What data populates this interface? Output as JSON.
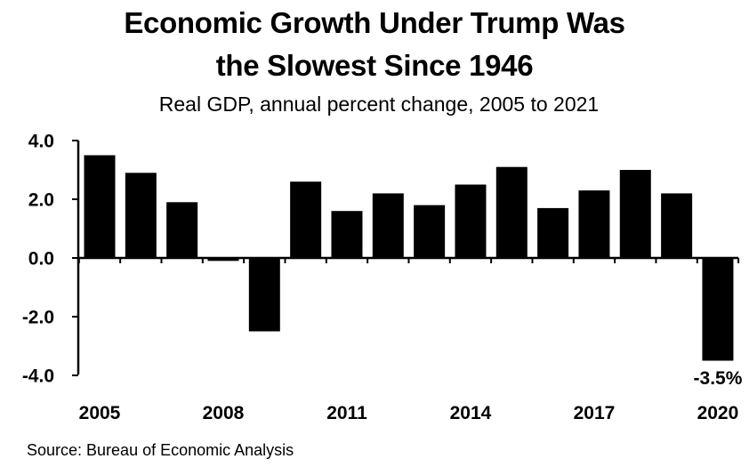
{
  "title_line1": "Economic Growth Under Trump Was",
  "title_line2": "the Slowest Since 1946",
  "subtitle": "Real GDP, annual percent change, 2005 to 2021",
  "source": "Source: Bureau of Economic Analysis",
  "colors": {
    "bar": "#000000",
    "axis": "#000000",
    "background": "#ffffff"
  },
  "chart_data": {
    "type": "bar",
    "title": "Economic Growth Under Trump Was the Slowest Since 1946",
    "subtitle": "Real GDP, annual percent change, 2005 to 2021",
    "categories": [
      "2005",
      "2006",
      "2007",
      "2008",
      "2009",
      "2010",
      "2011",
      "2012",
      "2013",
      "2014",
      "2015",
      "2016",
      "2017",
      "2018",
      "2019",
      "2020"
    ],
    "values": [
      3.5,
      2.9,
      1.9,
      -0.1,
      -2.5,
      2.6,
      1.6,
      2.2,
      1.8,
      2.5,
      3.1,
      1.7,
      2.3,
      3.0,
      2.2,
      -3.5
    ],
    "x_tick_labels": [
      "2005",
      "2008",
      "2011",
      "2014",
      "2017",
      "2020"
    ],
    "y_tick_labels": [
      "4.0",
      "2.0",
      "0.0",
      "-2.0",
      "-4.0"
    ],
    "ylim": [
      -4.0,
      4.0
    ],
    "yticks": [
      4.0,
      2.0,
      0.0,
      -2.0,
      -4.0
    ],
    "data_labels": [
      {
        "category": "2020",
        "text": "-3.5%"
      }
    ],
    "grid": false,
    "legend": "none",
    "xlabel": "",
    "ylabel": ""
  }
}
